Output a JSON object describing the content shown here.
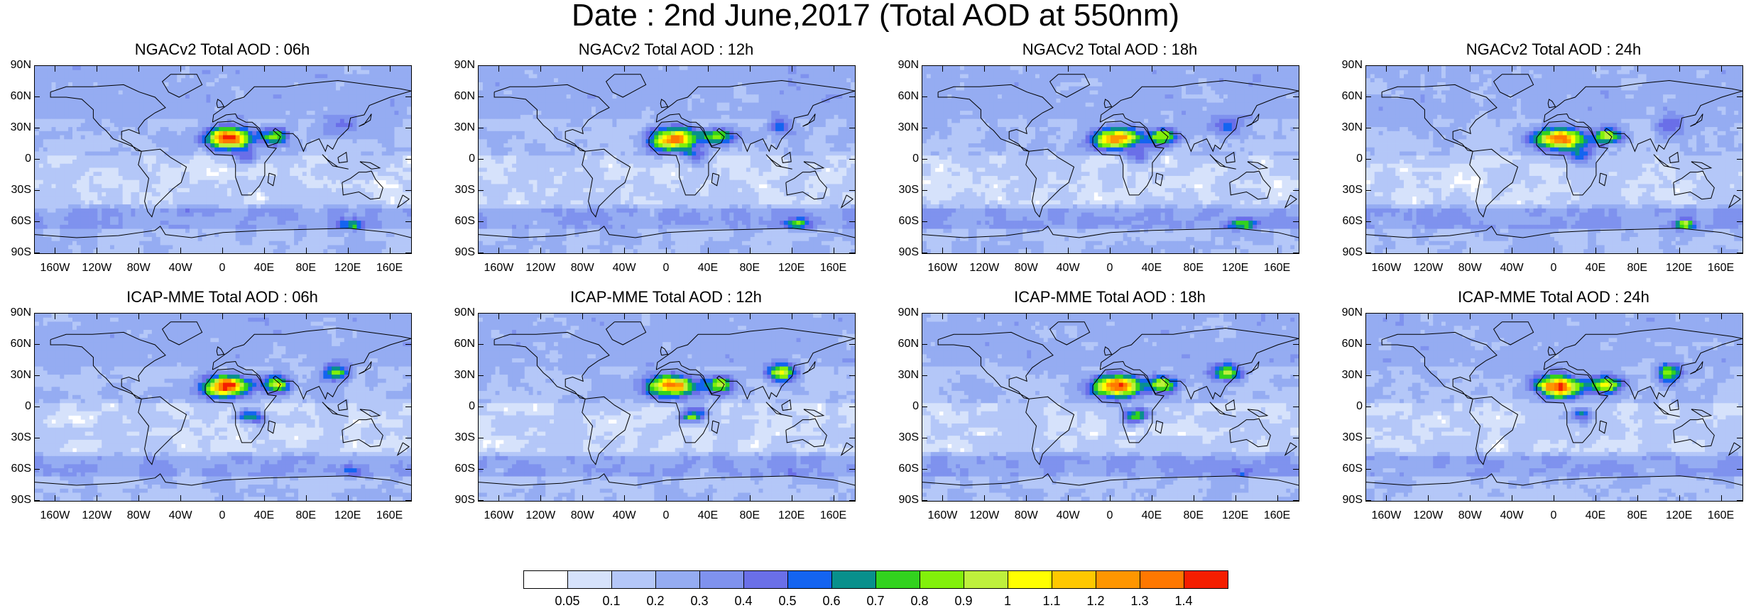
{
  "title": "Date : 2nd June,2017 (Total AOD at 550nm)",
  "lat_labels": [
    "90N",
    "60N",
    "30N",
    "0",
    "30S",
    "60S",
    "90S"
  ],
  "lon_labels": [
    "160W",
    "120W",
    "80W",
    "40W",
    "0",
    "40E",
    "80E",
    "120E",
    "160E"
  ],
  "panels": [
    {
      "title": "NGACv2 Total AOD : 06h",
      "model": "NGACv2",
      "hour": "06h"
    },
    {
      "title": "NGACv2 Total AOD : 12h",
      "model": "NGACv2",
      "hour": "12h"
    },
    {
      "title": "NGACv2 Total AOD : 18h",
      "model": "NGACv2",
      "hour": "18h"
    },
    {
      "title": "NGACv2 Total AOD : 24h",
      "model": "NGACv2",
      "hour": "24h"
    },
    {
      "title": "ICAP-MME Total AOD : 06h",
      "model": "ICAP-MME",
      "hour": "06h"
    },
    {
      "title": "ICAP-MME Total AOD : 12h",
      "model": "ICAP-MME",
      "hour": "12h"
    },
    {
      "title": "ICAP-MME Total AOD : 18h",
      "model": "ICAP-MME",
      "hour": "18h"
    },
    {
      "title": "ICAP-MME Total AOD : 24h",
      "model": "ICAP-MME",
      "hour": "24h"
    }
  ],
  "colorbar": {
    "levels": [
      "0.05",
      "0.1",
      "0.2",
      "0.3",
      "0.4",
      "0.5",
      "0.6",
      "0.7",
      "0.8",
      "0.9",
      "1",
      "1.1",
      "1.2",
      "1.3",
      "1.4"
    ],
    "colors": [
      "#ffffff",
      "#d6e2fb",
      "#b4c7f8",
      "#95acf2",
      "#7f92ee",
      "#6a6fe8",
      "#1464f0",
      "#08908c",
      "#32d21e",
      "#82f00a",
      "#bef03c",
      "#ffff00",
      "#ffc800",
      "#ff9600",
      "#ff7800",
      "#f51e00"
    ]
  }
}
